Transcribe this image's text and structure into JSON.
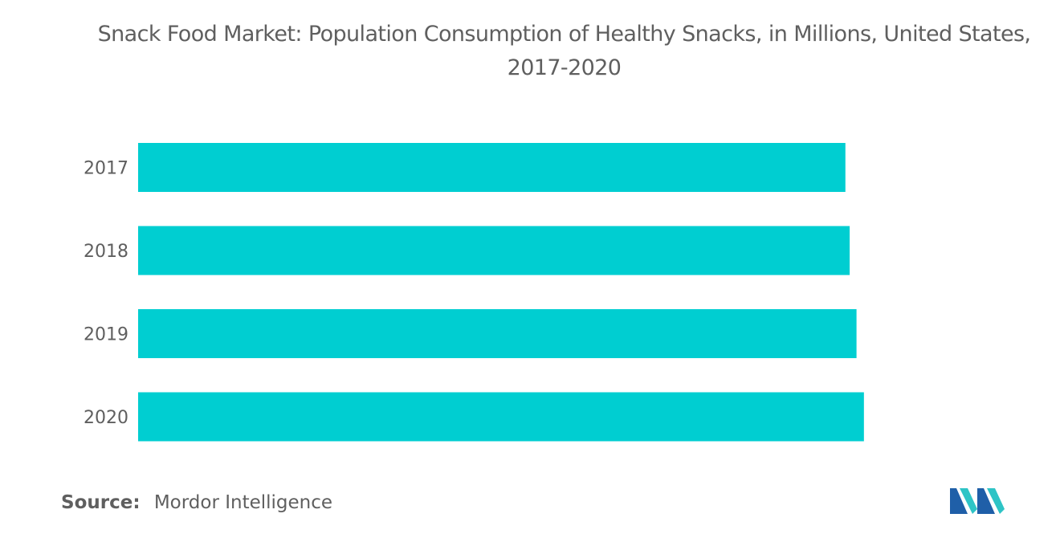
{
  "chart_data": {
    "type": "bar",
    "orientation": "horizontal",
    "title": "Snack Food Market: Population Consumption of Healthy Snacks, in Millions, United States, 2017-2020",
    "categories": [
      "2017",
      "2018",
      "2019",
      "2020"
    ],
    "values": [
      248.1,
      249.6,
      252.0,
      254.6
    ],
    "xlim": [
      0,
      260
    ],
    "xlabel": "",
    "ylabel": "",
    "grid": false,
    "legend": "none",
    "bar_color": "#00ced1"
  },
  "source": {
    "label": "Source:",
    "text": "Mordor Intelligence"
  },
  "logo": {
    "icon": "mordor-intelligence-logo",
    "colors": [
      "#1f5fa8",
      "#2ec4c6"
    ]
  }
}
